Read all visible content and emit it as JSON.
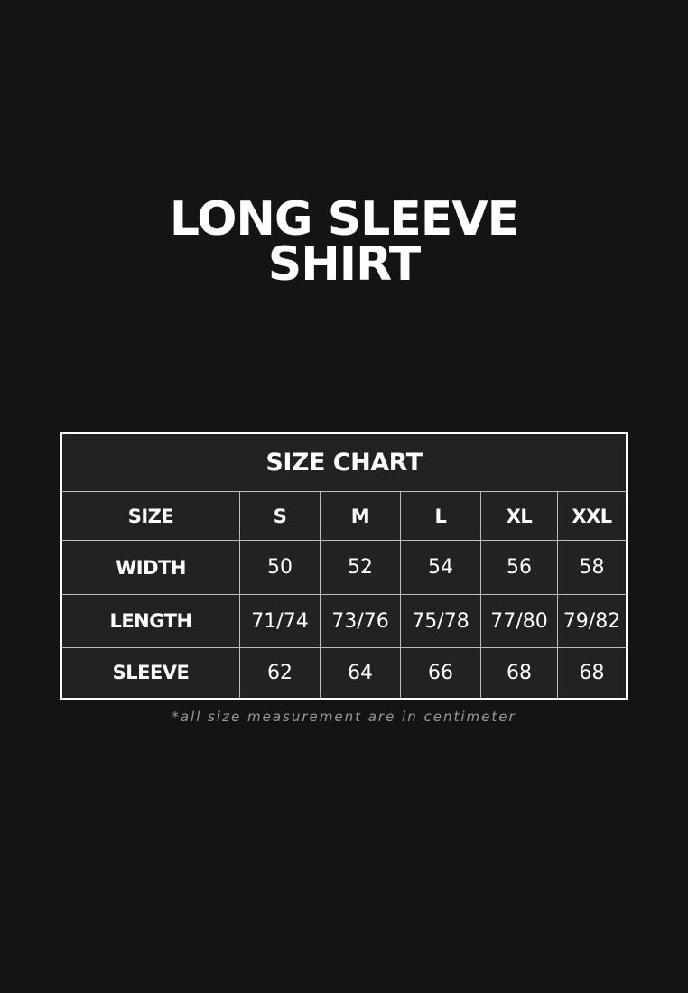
{
  "title": {
    "line1": "LONG SLEEVE",
    "line2": "SHIRT"
  },
  "chart": {
    "caption": "SIZE CHART",
    "header": [
      "SIZE",
      "S",
      "M",
      "L",
      "XL",
      "XXL"
    ],
    "rows": [
      {
        "label": "WIDTH",
        "values": [
          "50",
          "52",
          "54",
          "56",
          "58"
        ]
      },
      {
        "label": "LENGTH",
        "values": [
          "71/74",
          "73/76",
          "75/78",
          "77/80",
          "79/82"
        ]
      },
      {
        "label": "SLEEVE",
        "values": [
          "62",
          "64",
          "66",
          "68",
          "68"
        ]
      }
    ]
  },
  "note": "*all size measurement are in centimeter"
}
